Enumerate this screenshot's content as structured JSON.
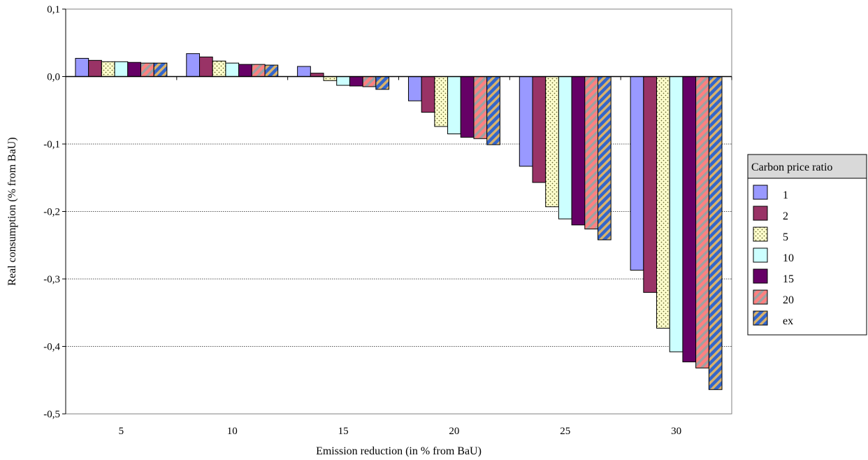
{
  "chart_data": {
    "type": "bar",
    "title": "",
    "xlabel": "Emission reduction (in % from BaU)",
    "ylabel": "Real consumption (% from BaU)",
    "categories": [
      "5",
      "10",
      "15",
      "20",
      "25",
      "30"
    ],
    "ylim": [
      -0.5,
      0.1
    ],
    "yticks": [
      0.1,
      0.0,
      -0.1,
      -0.2,
      -0.3,
      -0.4,
      -0.5
    ],
    "ytick_labels": [
      "0,1",
      "0,0",
      "-0,1",
      "-0,2",
      "-0,3",
      "-0,4",
      "-0,5"
    ],
    "grid": true,
    "legend": {
      "title": "Carbon price ratio",
      "placement": "right"
    },
    "series": [
      {
        "name": "1",
        "pattern": "solid",
        "color": "#9999ff",
        "values": [
          0.027,
          0.034,
          0.015,
          -0.036,
          -0.133,
          -0.287
        ]
      },
      {
        "name": "2",
        "pattern": "solid",
        "color": "#993366",
        "values": [
          0.024,
          0.029,
          0.005,
          -0.053,
          -0.157,
          -0.32
        ]
      },
      {
        "name": "5",
        "pattern": "dots",
        "color": "#ffffcc",
        "values": [
          0.022,
          0.023,
          -0.006,
          -0.074,
          -0.193,
          -0.373
        ]
      },
      {
        "name": "10",
        "pattern": "solid",
        "color": "#ccffff",
        "values": [
          0.022,
          0.02,
          -0.013,
          -0.085,
          -0.211,
          -0.408
        ]
      },
      {
        "name": "15",
        "pattern": "solid",
        "color": "#660066",
        "values": [
          0.021,
          0.018,
          -0.014,
          -0.09,
          -0.22,
          -0.423
        ]
      },
      {
        "name": "20",
        "pattern": "stripes",
        "color": "#ff8080",
        "values": [
          0.02,
          0.018,
          -0.015,
          -0.092,
          -0.226,
          -0.432
        ]
      },
      {
        "name": "ex",
        "pattern": "stripes",
        "color": "#3366cc",
        "values": [
          0.02,
          0.017,
          -0.019,
          -0.101,
          -0.242,
          -0.464
        ]
      }
    ]
  }
}
